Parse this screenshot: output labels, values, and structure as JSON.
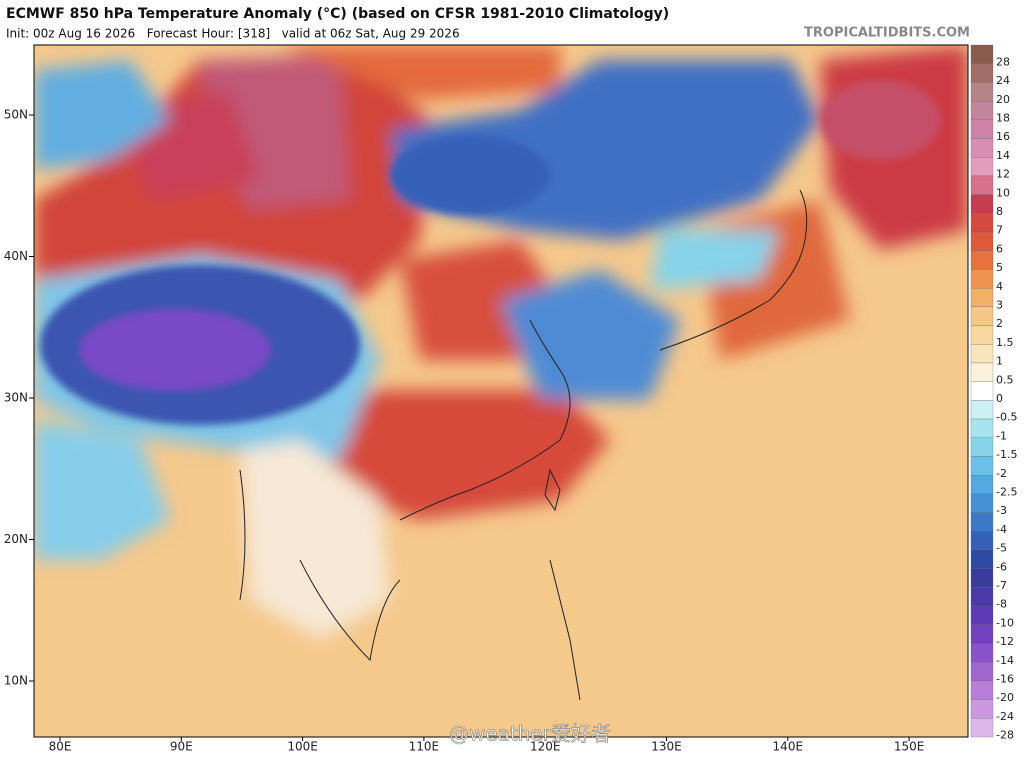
{
  "header": {
    "title": "ECMWF 850 hPa Temperature Anomaly (°C) (based on CFSR 1981-2010 Climatology)",
    "subtitle": "Init: 00z Aug 16 2026   Forecast Hour: [318]   valid at 06z Sat, Aug 29 2026",
    "source": "TROPICALTIDBITS.COM"
  },
  "map": {
    "latitude_labels": [
      "50N",
      "40N",
      "30N",
      "20N",
      "10N"
    ],
    "longitude_labels": [
      "80E",
      "90E",
      "100E",
      "110E",
      "120E",
      "130E",
      "140E",
      "150E"
    ]
  },
  "legend": {
    "items": [
      {
        "label": "28",
        "color": "#8a5a4c"
      },
      {
        "label": "24",
        "color": "#a06e66"
      },
      {
        "label": "20",
        "color": "#b48486"
      },
      {
        "label": "18",
        "color": "#c2869c"
      },
      {
        "label": "16",
        "color": "#cf82a6"
      },
      {
        "label": "14",
        "color": "#d98fb4"
      },
      {
        "label": "12",
        "color": "#e29cbc"
      },
      {
        "label": "10",
        "color": "#d9708c"
      },
      {
        "label": "8",
        "color": "#c63c50"
      },
      {
        "label": "7",
        "color": "#d44a3e"
      },
      {
        "label": "6",
        "color": "#de5a3a"
      },
      {
        "label": "5",
        "color": "#e6723c"
      },
      {
        "label": "4",
        "color": "#ee9450"
      },
      {
        "label": "3",
        "color": "#f2b066"
      },
      {
        "label": "2",
        "color": "#f5c685"
      },
      {
        "label": "1.5",
        "color": "#f8d69f"
      },
      {
        "label": "1",
        "color": "#fae4bb"
      },
      {
        "label": "0.5",
        "color": "#fcf1da"
      },
      {
        "label": "0",
        "color": "#ffffff"
      },
      {
        "label": "-0.5",
        "color": "#cdf0f5"
      },
      {
        "label": "-1",
        "color": "#a8e4ef"
      },
      {
        "label": "-1.5",
        "color": "#86d3ea"
      },
      {
        "label": "-2",
        "color": "#6ac0e6"
      },
      {
        "label": "-2.5",
        "color": "#55a9e0"
      },
      {
        "label": "-3",
        "color": "#4690d6"
      },
      {
        "label": "-4",
        "color": "#3c78c8"
      },
      {
        "label": "-5",
        "color": "#3560b8"
      },
      {
        "label": "-6",
        "color": "#2e4aa5"
      },
      {
        "label": "-7",
        "color": "#3a3b9a"
      },
      {
        "label": "-8",
        "color": "#4a3aa5"
      },
      {
        "label": "-10",
        "color": "#5c3ab5"
      },
      {
        "label": "-12",
        "color": "#7240c0"
      },
      {
        "label": "-14",
        "color": "#8a52c8"
      },
      {
        "label": "-16",
        "color": "#a066d0"
      },
      {
        "label": "-20",
        "color": "#b87ed8"
      },
      {
        "label": "-24",
        "color": "#cc98e0"
      },
      {
        "label": "-28",
        "color": "#ddb6ea"
      }
    ]
  },
  "watermark": "@weather爱好者"
}
